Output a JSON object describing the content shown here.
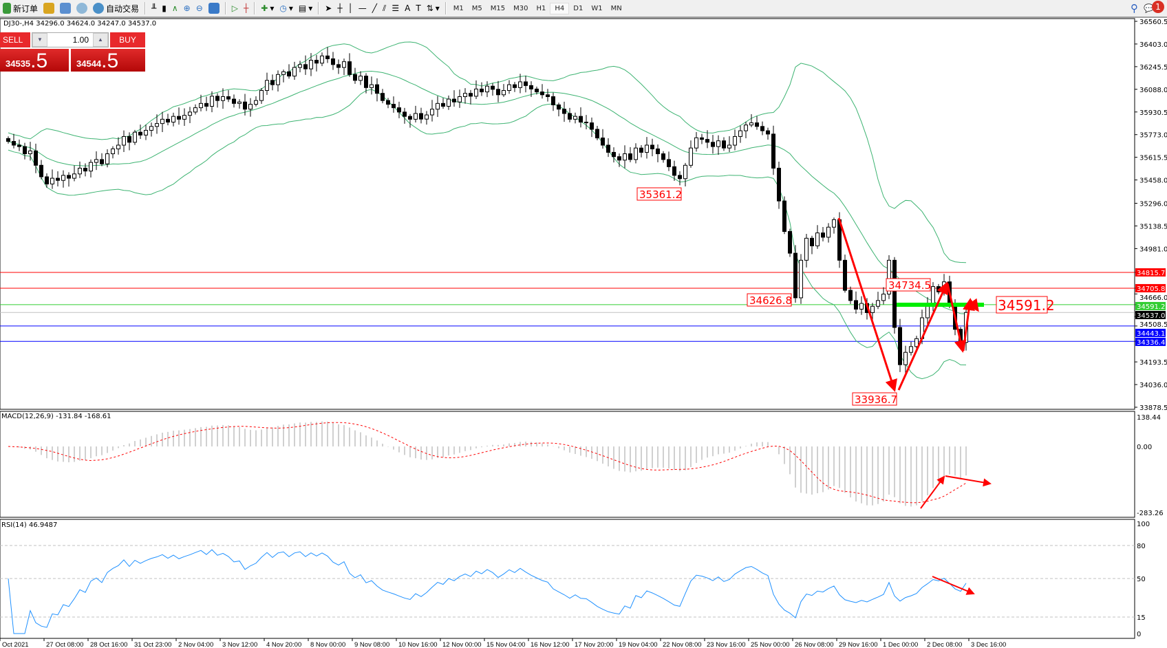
{
  "toolbar": {
    "new_order": "新订单",
    "auto_trading": "自动交易",
    "timeframes": [
      "M1",
      "M5",
      "M15",
      "M30",
      "H1",
      "H4",
      "D1",
      "W1",
      "MN"
    ],
    "active_timeframe": "H4",
    "notification_count": "1"
  },
  "chart_header": "DJ30-,H4  34296.0 34624.0 34247.0 34537.0",
  "one_click": {
    "sell_label": "SELL",
    "buy_label": "BUY",
    "lot": "1.00",
    "sell_price_main": "34535",
    "sell_price_frac": ".5",
    "buy_price_main": "34544",
    "buy_price_frac": ".5"
  },
  "colors": {
    "bands": "#3cb371",
    "annotation": "#ff0000",
    "histogram": "#c0c0c0",
    "rsi": "#1e90ff"
  },
  "price_axis": [
    "36560.5",
    "36403.0",
    "36245.5",
    "36088.0",
    "35930.5",
    "35773.0",
    "35615.5",
    "35458.0",
    "35296.0",
    "35138.5",
    "34981.0",
    "34666.0",
    "34508.5",
    "34193.5",
    "34036.0",
    "33878.5"
  ],
  "levels": [
    {
      "value": "34815.7",
      "color": "#ff0000"
    },
    {
      "value": "34705.8",
      "color": "#ff0000"
    },
    {
      "value": "34591.2",
      "color": "#32cd32"
    },
    {
      "value": "34537.0",
      "color": "#000000",
      "line": "#c0c0c0"
    },
    {
      "value": "34443.1",
      "color": "#0000ff"
    },
    {
      "value": "34336.4",
      "color": "#0000ff"
    }
  ],
  "annotations": [
    "35361.2",
    "34626.8",
    "34734.5",
    "33936.7",
    "34591.2"
  ],
  "macd": {
    "label": "MACD(12,26,9) -131.84 -168.61",
    "axis": [
      "138.44",
      "0.00",
      "-283.26"
    ]
  },
  "rsi": {
    "label": "RSI(14) 46.9487",
    "axis": [
      "100",
      "80",
      "50",
      "15",
      "0"
    ]
  },
  "time_axis": [
    "Oct 2021",
    "27 Oct 08:00",
    "28 Oct 16:00",
    "31 Oct 23:00",
    "2 Nov 04:00",
    "3 Nov 12:00",
    "4 Nov 20:00",
    "8 Nov 00:00",
    "9 Nov 08:00",
    "10 Nov 16:00",
    "12 Nov 00:00",
    "15 Nov 04:00",
    "16 Nov 12:00",
    "17 Nov 20:00",
    "19 Nov 04:00",
    "22 Nov 08:00",
    "23 Nov 16:00",
    "25 Nov 00:00",
    "26 Nov 08:00",
    "29 Nov 16:00",
    "1 Dec 00:00",
    "2 Dec 08:00",
    "3 Dec 16:00"
  ],
  "closes": [
    35726,
    35700,
    35690,
    35640,
    35660,
    35560,
    35480,
    35430,
    35470,
    35455,
    35490,
    35470,
    35500,
    35540,
    35520,
    35580,
    35600,
    35570,
    35640,
    35674,
    35700,
    35760,
    35720,
    35790,
    35770,
    35803,
    35830,
    35850,
    35880,
    35860,
    35900,
    35880,
    35907,
    35930,
    35960,
    35990,
    35970,
    36040,
    36010,
    36037,
    36020,
    35990,
    36000,
    35950,
    35984,
    36010,
    36080,
    36150,
    36120,
    36191,
    36210,
    36180,
    36240,
    36260,
    36230,
    36290,
    36270,
    36320,
    36300,
    36260,
    36240,
    36280,
    36191,
    36150,
    36180,
    36100,
    36120,
    36060,
    36010,
    35984,
    35960,
    35930,
    35900,
    35880,
    35920,
    35881,
    35910,
    35950,
    35990,
    35970,
    36020,
    36000,
    36037,
    36060,
    36040,
    36090,
    36070,
    36110,
    36088,
    36050,
    36080,
    36120,
    36100,
    36140,
    36114,
    36090,
    36070,
    36050,
    36037,
    35980,
    35950,
    35920,
    35880,
    35900,
    35860,
    35855,
    35810,
    35750,
    35700,
    35650,
    35620,
    35596,
    35640,
    35600,
    35680,
    35650,
    35700,
    35674,
    35640,
    35600,
    35550,
    35490,
    35467,
    35560,
    35680,
    35751,
    35740,
    35720,
    35690,
    35730,
    35680,
    35700,
    35760,
    35800,
    35840,
    35855,
    35830,
    35800,
    35777,
    35540,
    35312,
    35100,
    34949,
    34639,
    34900,
    35053,
    35000,
    35090,
    35060,
    35130,
    35182,
    34900,
    34691,
    34620,
    34560,
    34600,
    34536,
    34580,
    34620,
    34665,
    34900,
    34433,
    34174,
    34260,
    34300,
    34355,
    34500,
    34600,
    34717,
    34680,
    34750,
    34600,
    34420,
    34329,
    34537
  ]
}
